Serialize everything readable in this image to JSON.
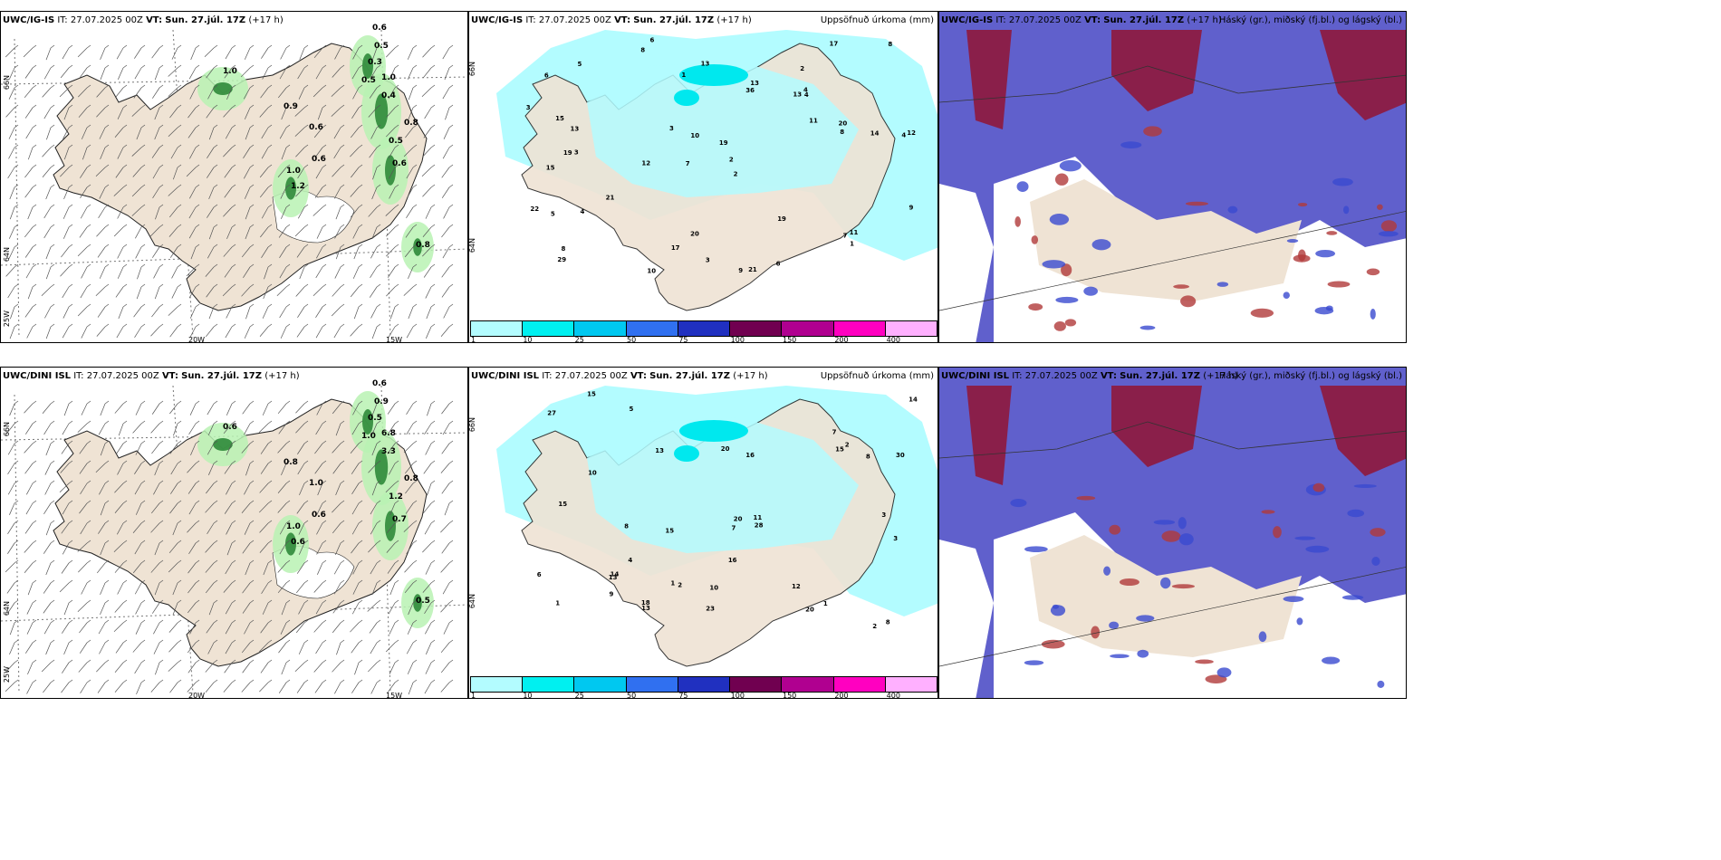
{
  "rows": [
    {
      "model": "UWC/IG-IS",
      "it": "IT: 27.07.2025 00Z",
      "vt_label": "VT:",
      "vt": "Sun. 27.júl. 17Z",
      "lead": "(+17 h)",
      "wind_values": [
        "0.6",
        "0.5",
        "0.3",
        "1.0",
        "0.5",
        "1.0",
        "0.9",
        "0.6",
        "0.6",
        "1.0",
        "1.2",
        "0.8",
        "0.8",
        "0.6",
        "0.5",
        "0.4"
      ],
      "precip_values": [
        "6",
        "2",
        "4",
        "7",
        "2",
        "3",
        "6",
        "13",
        "15",
        "36",
        "19",
        "29",
        "8",
        "12",
        "9",
        "21",
        "20",
        "17",
        "11",
        "21",
        "13",
        "19",
        "12",
        "14",
        "22",
        "15",
        "10",
        "8",
        "11",
        "5",
        "7",
        "13",
        "4",
        "3",
        "19",
        "9",
        "20",
        "17",
        "8",
        "13",
        "8",
        "10",
        "6",
        "5",
        "3",
        "4",
        "1",
        "4",
        "3",
        "2",
        "1"
      ]
    },
    {
      "model": "UWC/DINI ISL",
      "it": "IT: 27.07.2025 00Z",
      "vt_label": "VT:",
      "vt": "Sun. 27.júl. 17Z",
      "lead": "(+17 h)",
      "wind_values": [
        "0.6",
        "0.9",
        "0.5",
        "6.8",
        "1.0",
        "0.6",
        "0.8",
        "1.0",
        "0.6",
        "1.0",
        "0.6",
        "0.8",
        "0.5",
        "0.7",
        "1.2",
        "3.3"
      ],
      "precip_values": [
        "1",
        "2",
        "3",
        "23",
        "15",
        "13",
        "30",
        "14",
        "10",
        "8",
        "20",
        "27",
        "16",
        "13",
        "18",
        "15",
        "10",
        "7",
        "28",
        "20",
        "15",
        "11",
        "7",
        "13",
        "12",
        "8",
        "20",
        "14",
        "5",
        "6",
        "16",
        "15",
        "9",
        "8",
        "4",
        "2",
        "1",
        "3",
        "2",
        "1"
      ]
    }
  ],
  "precip_title": "Uppsöfnuð úrkoma (mm)",
  "cloud_title": "Háský (gr.), miðský (fj.bl.) og lágský (bl.)",
  "lat_labels": [
    "66N",
    "64N",
    "25W"
  ],
  "lon_labels": [
    "20W",
    "15W"
  ],
  "colorbar": {
    "colors": [
      "#b3fcff",
      "#00f0f0",
      "#00c8f0",
      "#3070f0",
      "#2030c0",
      "#700050",
      "#b00090",
      "#ff00c0",
      "#ffb0ff"
    ],
    "labels": [
      "1",
      "10",
      "25",
      "50",
      "75",
      "100",
      "150",
      "200",
      "400"
    ]
  }
}
